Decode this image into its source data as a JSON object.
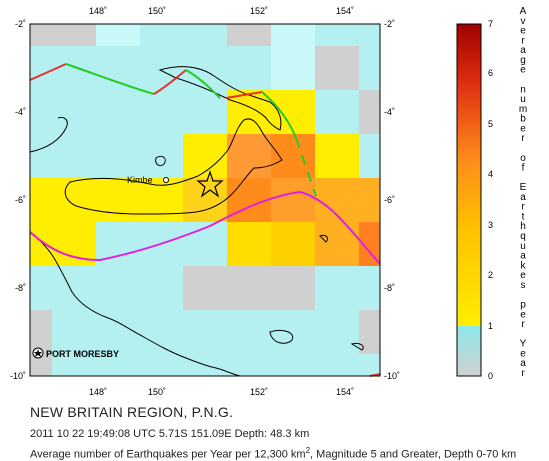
{
  "title": "NEW BRITAIN REGION, P.N.G.",
  "event_line": "2011 10 22 19:49:08 UTC 5.71S 151.09E Depth: 48.3 km",
  "caption": {
    "prefix": "Average number of Earthquakes per Year per 12,300 km",
    "superscript": "2",
    "suffix": ", Magnitude 5 and Greater, Depth 0-70 km"
  },
  "map": {
    "lon_range": [
      147,
      155
    ],
    "lat_range": [
      -10,
      -2
    ],
    "x_ticks": [
      "148˚",
      "150˚",
      "152˚",
      "154˚"
    ],
    "y_ticks": [
      "-2˚",
      "-4˚",
      "-6˚",
      "-8˚",
      "-10˚"
    ],
    "labels": {
      "kimbe": "Kimbe",
      "port_moresby": "PORT MORESBY"
    },
    "epicenter": {
      "lon": 151.09,
      "lat": -5.71
    }
  },
  "colorbar": {
    "title_letters": [
      "A",
      "v",
      "e",
      "r",
      "a",
      "g",
      "e",
      "",
      "n",
      "u",
      "m",
      "b",
      "e",
      "r",
      "",
      "o",
      "f",
      "",
      "E",
      "a",
      "r",
      "t",
      "h",
      "q",
      "u",
      "a",
      "k",
      "e",
      "s",
      "",
      "p",
      "e",
      "r",
      "",
      "Y",
      "e",
      "a",
      "r"
    ],
    "ticks": [
      "0",
      "1",
      "2",
      "3",
      "4",
      "5",
      "6",
      "7"
    ],
    "colors": {
      "zero": "#d0d0d0",
      "low": "#b4f0f0",
      "mid": "#ffee00",
      "orange": "#ff9933",
      "high": "#b00000"
    }
  },
  "colors": {
    "plate_boundary_red": "#e53030",
    "plate_boundary_green": "#22cc22",
    "plate_boundary_magenta": "#e020e0",
    "coastline": "#000000"
  }
}
